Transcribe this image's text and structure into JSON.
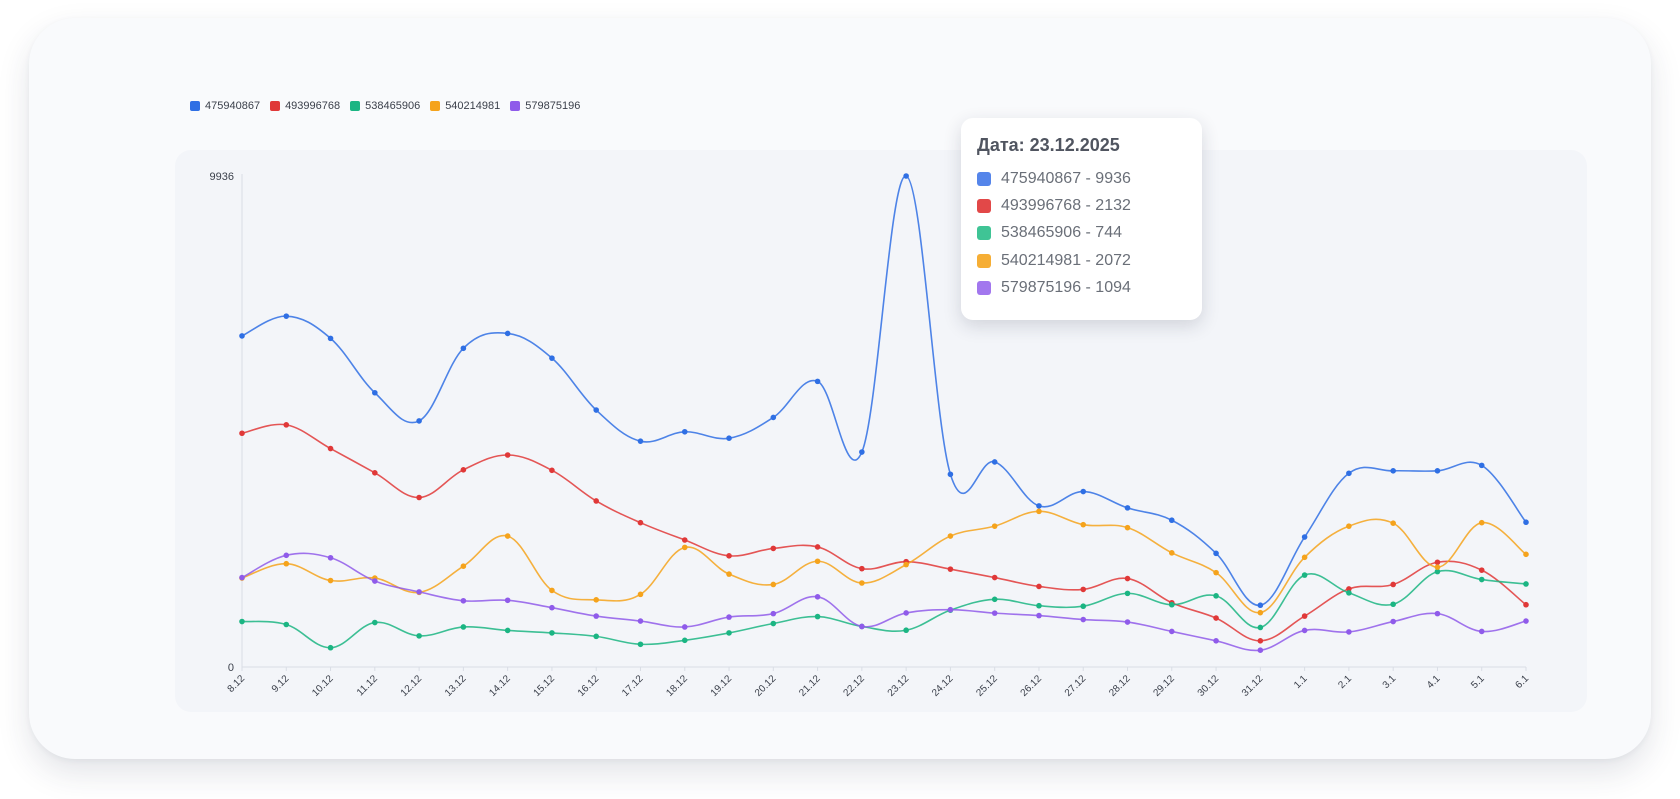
{
  "chart_data": {
    "type": "line",
    "title": "",
    "xlabel": "",
    "ylabel": "",
    "ylim": [
      0,
      9936
    ],
    "y_ticks": [
      "0",
      "9936"
    ],
    "smooth": true,
    "grid": false,
    "legend_position": "top-left",
    "categories": [
      "8.12",
      "9.12",
      "10.12",
      "11.12",
      "12.12",
      "13.12",
      "14.12",
      "15.12",
      "16.12",
      "17.12",
      "18.12",
      "19.12",
      "20.12",
      "21.12",
      "22.12",
      "23.12",
      "24.12",
      "25.12",
      "26.12",
      "27.12",
      "28.12",
      "29.12",
      "30.12",
      "31.12",
      "1.1",
      "2.1",
      "3.1",
      "4.1",
      "5.1",
      "6.1"
    ],
    "series": [
      {
        "name": "475940867",
        "color": "#2f6fe4",
        "values": [
          6700,
          7100,
          6650,
          5550,
          4980,
          6450,
          6750,
          6250,
          5200,
          4570,
          4760,
          4630,
          5050,
          5780,
          4350,
          9936,
          3900,
          4150,
          3260,
          3550,
          3220,
          2970,
          2300,
          1250,
          2630,
          3920,
          3970,
          3970,
          4080,
          2930
        ]
      },
      {
        "name": "493996768",
        "color": "#e03838",
        "values": [
          4730,
          4900,
          4420,
          3930,
          3430,
          3990,
          4290,
          3980,
          3360,
          2920,
          2570,
          2250,
          2400,
          2430,
          1990,
          2132,
          1980,
          1810,
          1630,
          1570,
          1790,
          1300,
          990,
          530,
          1030,
          1580,
          1670,
          2120,
          1960,
          1260
        ]
      },
      {
        "name": "538465906",
        "color": "#1bb583",
        "values": [
          920,
          860,
          390,
          900,
          630,
          810,
          740,
          690,
          620,
          460,
          540,
          690,
          880,
          1020,
          820,
          744,
          1150,
          1370,
          1240,
          1230,
          1490,
          1260,
          1440,
          800,
          1860,
          1500,
          1270,
          1930,
          1770,
          1680
        ]
      },
      {
        "name": "540214981",
        "color": "#f5a31c",
        "values": [
          1800,
          2090,
          1750,
          1800,
          1510,
          2040,
          2650,
          1550,
          1360,
          1470,
          2420,
          1880,
          1670,
          2140,
          1700,
          2072,
          2650,
          2850,
          3150,
          2880,
          2820,
          2310,
          1910,
          1100,
          2220,
          2850,
          2910,
          2020,
          2920,
          2280
        ]
      },
      {
        "name": "579875196",
        "color": "#8f5bea",
        "values": [
          1810,
          2260,
          2210,
          1740,
          1520,
          1340,
          1350,
          1200,
          1030,
          930,
          810,
          1010,
          1080,
          1420,
          820,
          1094,
          1160,
          1090,
          1040,
          960,
          910,
          720,
          530,
          340,
          740,
          710,
          920,
          1080,
          720,
          930
        ]
      }
    ],
    "tooltip": {
      "title": "Дата: 23.12.2025",
      "rows": [
        "475940867 - 9936",
        "493996768 - 2132",
        "538465906 - 744",
        "540214981 - 2072",
        "579875196 - 1094"
      ]
    }
  }
}
